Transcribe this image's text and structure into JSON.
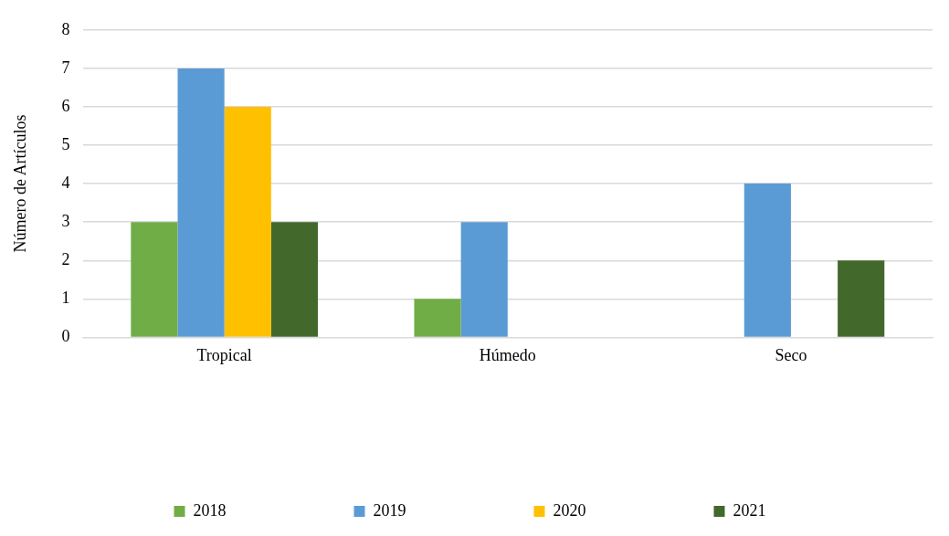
{
  "chart_data": {
    "type": "bar",
    "ylabel": "Número de Artículos",
    "categories": [
      "Tropical",
      "Húmedo",
      "Seco"
    ],
    "series": [
      {
        "name": "2018",
        "color": "#70ad47",
        "values": [
          3,
          1,
          0
        ]
      },
      {
        "name": "2019",
        "color": "#5b9bd5",
        "values": [
          7,
          3,
          4
        ]
      },
      {
        "name": "2020",
        "color": "#ffc000",
        "values": [
          6,
          0,
          0
        ]
      },
      {
        "name": "2021",
        "color": "#43682b",
        "values": [
          3,
          0,
          2
        ]
      }
    ],
    "ylim": [
      0,
      8
    ],
    "yticks": [
      0,
      1,
      2,
      3,
      4,
      5,
      6,
      7,
      8
    ],
    "grid": "y",
    "legend": "bottom"
  }
}
